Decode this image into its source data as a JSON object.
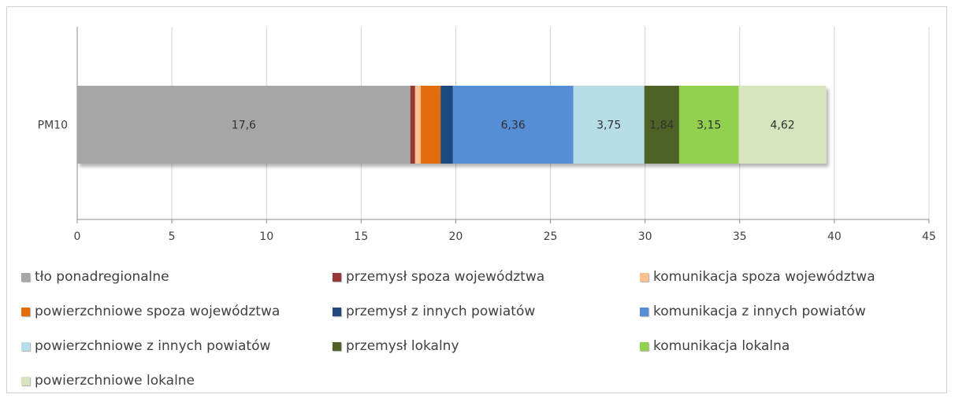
{
  "chart_data": {
    "type": "bar",
    "orientation": "horizontal",
    "stacked": true,
    "categories": [
      "PM10"
    ],
    "xlim": [
      0,
      45
    ],
    "x_ticks": [
      "0",
      "5",
      "10",
      "15",
      "20",
      "25",
      "30",
      "35",
      "40",
      "45"
    ],
    "grid": true,
    "legend_position": "bottom",
    "series": [
      {
        "name": "tło ponadregionalne",
        "values": [
          17.6
        ],
        "label": "17,6",
        "color": "#a6a6a6"
      },
      {
        "name": "przemysł spoza województwa",
        "values": [
          0.25
        ],
        "label": "",
        "color": "#953735"
      },
      {
        "name": "komunikacja spoza województwa",
        "values": [
          0.3
        ],
        "label": "",
        "color": "#fac090"
      },
      {
        "name": "powierzchniowe spoza województwa",
        "values": [
          1.05
        ],
        "label": "",
        "color": "#e36c09"
      },
      {
        "name": "przemysł z innych powiatów",
        "values": [
          0.65
        ],
        "label": "",
        "color": "#1f497d"
      },
      {
        "name": "komunikacja z innych powiatów",
        "values": [
          6.36
        ],
        "label": "6,36",
        "color": "#558ed5"
      },
      {
        "name": "powierzchniowe z innych powiatów",
        "values": [
          3.75
        ],
        "label": "3,75",
        "color": "#b7dee8"
      },
      {
        "name": "przemysł lokalny",
        "values": [
          1.84
        ],
        "label": "1,84",
        "color": "#4f6228"
      },
      {
        "name": "komunikacja lokalna",
        "values": [
          3.15
        ],
        "label": "3,15",
        "color": "#92d050"
      },
      {
        "name": "powierzchniowe lokalne",
        "values": [
          4.62
        ],
        "label": "4,62",
        "color": "#d7e4bd"
      }
    ]
  }
}
